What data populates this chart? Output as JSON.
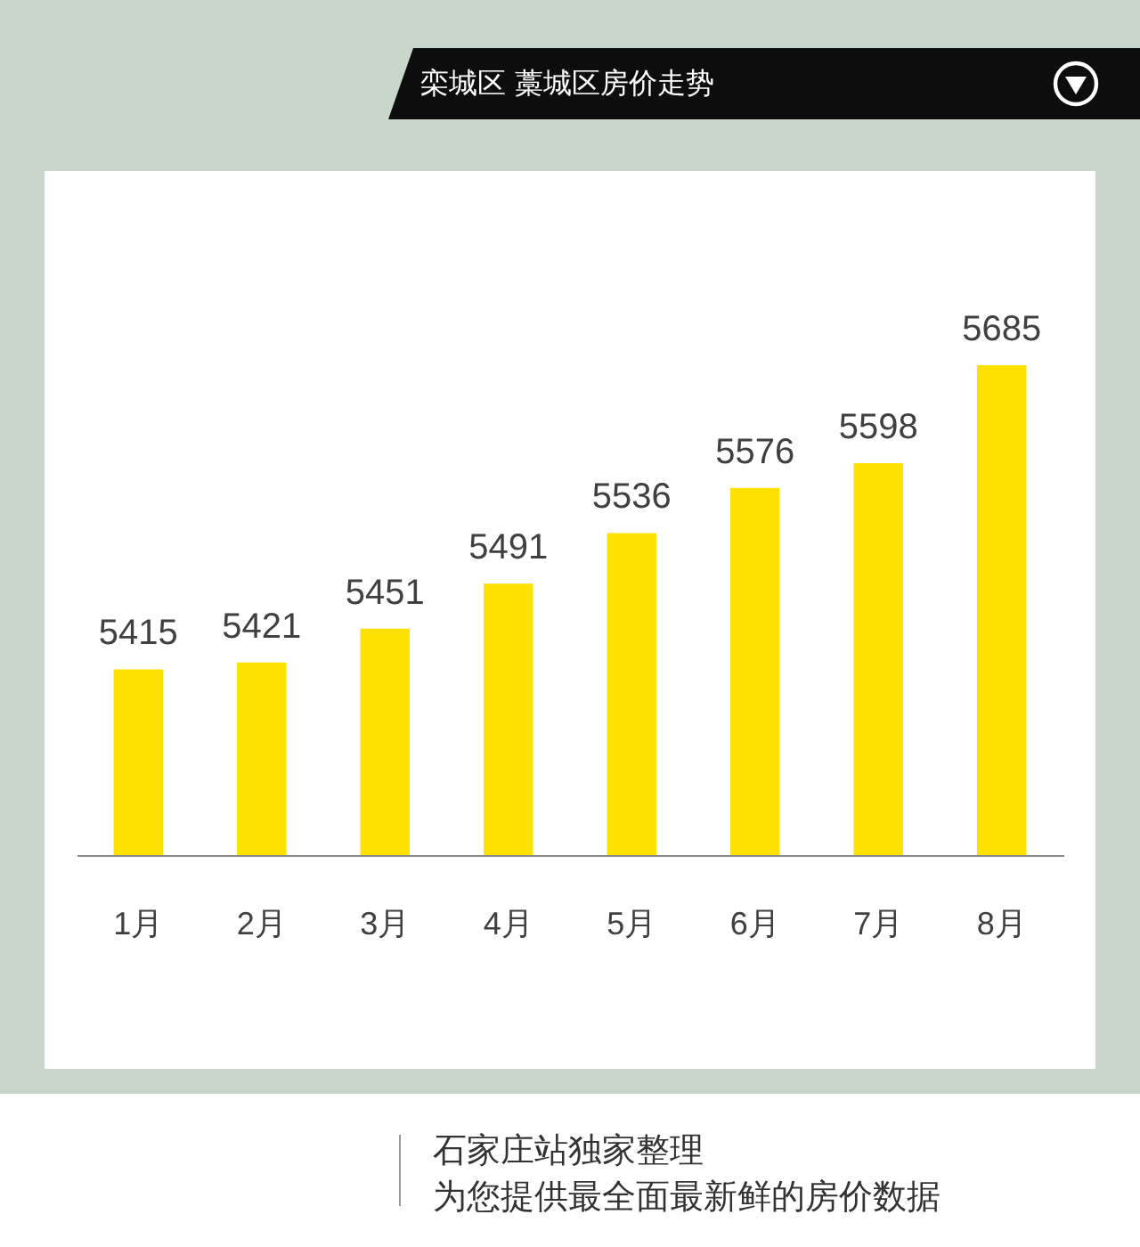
{
  "chart_data": {
    "type": "bar",
    "title": "栾城区 藁城区房价走势",
    "categories": [
      "1月",
      "2月",
      "3月",
      "4月",
      "5月",
      "6月",
      "7月",
      "8月"
    ],
    "values": [
      5415,
      5421,
      5451,
      5491,
      5536,
      5576,
      5598,
      5685
    ],
    "color": "#ffe100",
    "ylim": [
      5250,
      5685
    ],
    "data_labels": true,
    "tick_labels": "x",
    "annotations": [
      "石家庄站独家整理",
      "为您提供最全面最新鲜的房价数据"
    ]
  }
}
